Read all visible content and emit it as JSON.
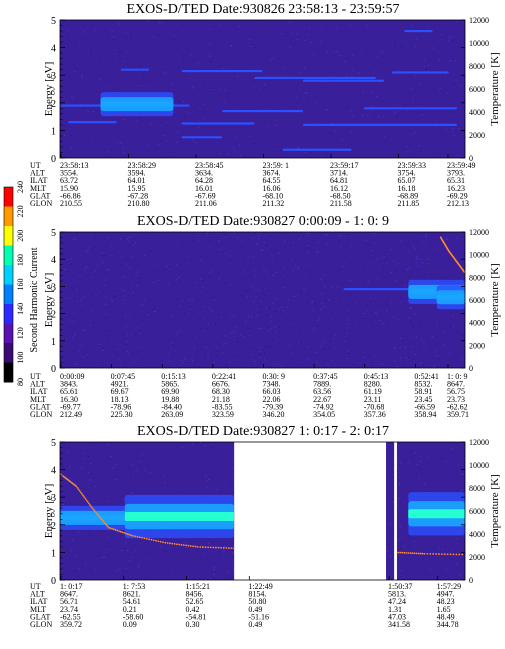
{
  "colors": {
    "background": "#3a1f9b",
    "band_weak": "#2a50ff",
    "band_mid": "#1aa6ff",
    "band_strong": "#25ffd2",
    "trace": "#ff8a2a"
  },
  "colorbar": {
    "label": "Second Harmonic Current",
    "ticks": [
      "80",
      "100",
      "120",
      "140",
      "160",
      "180",
      "200",
      "220",
      "240"
    ],
    "colors": [
      "#000000",
      "#3b0a73",
      "#5a13b0",
      "#2b2bff",
      "#0080ff",
      "#00d0ff",
      "#00ffb0",
      "#ffff00",
      "#ff9900",
      "#ff0000"
    ]
  },
  "chart_data": [
    {
      "type": "heatmap",
      "title": "EXOS-D/TED   Date:930826  23:58:13 - 23:59:57",
      "ylabel": "Energy [eV]",
      "y2label": "Temperature [K]",
      "ylim": [
        0,
        5
      ],
      "y2lim": [
        0,
        12000
      ],
      "yticks": [
        "0",
        "1",
        "2",
        "3",
        "4",
        "5"
      ],
      "y2ticks": [
        "0",
        "2000",
        "4000",
        "6000",
        "8000",
        "10000",
        "12000"
      ],
      "ephemeris": {
        "labels": [
          "UT",
          "ALT",
          "ILAT",
          "MLT",
          "GLAT",
          "GLON"
        ],
        "columns": [
          [
            "23:58:13",
            "3554.",
            "63.72",
            "15.90",
            "-66.86",
            "210.55"
          ],
          [
            "23:58:29",
            "3594.",
            "64.01",
            "15.95",
            "-67.28",
            "210.80"
          ],
          [
            "23:58:45",
            "3634.",
            "64.28",
            "16.01",
            "-67.69",
            "211.06"
          ],
          [
            "23:59: 1",
            "3674.",
            "64.55",
            "16.06",
            "-68.10",
            "211.32"
          ],
          [
            "23:59:17",
            "3714.",
            "64.81",
            "16.12",
            "-68.50",
            "211.58"
          ],
          [
            "23:59:33",
            "3754.",
            "65.07",
            "16.18",
            "-68.89",
            "211.85"
          ],
          [
            "23:59:49",
            "3793.",
            "65.31",
            "16.23",
            "-69.29",
            "212.13"
          ]
        ]
      },
      "x_coverage": [
        [
          0,
          1
        ]
      ],
      "features": [
        {
          "t": [
            0.15,
            0.22
          ],
          "e": 3.2,
          "level": 1
        },
        {
          "t": [
            0.3,
            0.5
          ],
          "e": 3.15,
          "level": 1
        },
        {
          "t": [
            0.48,
            0.78
          ],
          "e": 2.9,
          "level": 1
        },
        {
          "t": [
            0.6,
            0.8
          ],
          "e": 2.8,
          "level": 1
        },
        {
          "t": [
            0.82,
            0.96
          ],
          "e": 3.1,
          "level": 1
        },
        {
          "t": [
            0.0,
            0.32
          ],
          "e": 1.9,
          "level": 1
        },
        {
          "t": [
            0.1,
            0.28
          ],
          "e": 1.95,
          "level": 2
        },
        {
          "t": [
            0.4,
            0.6
          ],
          "e": 1.7,
          "level": 1
        },
        {
          "t": [
            0.75,
            0.98
          ],
          "e": 1.8,
          "level": 1
        },
        {
          "t": [
            0.02,
            0.14
          ],
          "e": 1.3,
          "level": 1
        },
        {
          "t": [
            0.3,
            0.48
          ],
          "e": 1.25,
          "level": 1
        },
        {
          "t": [
            0.6,
            0.98
          ],
          "e": 1.2,
          "level": 1
        },
        {
          "t": [
            0.3,
            0.4
          ],
          "e": 0.75,
          "level": 1
        },
        {
          "t": [
            0.55,
            0.72
          ],
          "e": 0.3,
          "level": 1
        },
        {
          "t": [
            0.85,
            0.92
          ],
          "e": 4.6,
          "level": 1
        }
      ]
    },
    {
      "type": "heatmap",
      "title": "EXOS-D/TED   Date:930827  0:00:09 - 1: 0: 9",
      "ylabel": "Energy [eV]",
      "y2label": "Temperature [K]",
      "ylim": [
        0,
        5
      ],
      "y2lim": [
        0,
        12000
      ],
      "yticks": [
        "0",
        "1",
        "2",
        "3",
        "4",
        "5"
      ],
      "y2ticks": [
        "0",
        "2000",
        "4000",
        "6000",
        "8000",
        "10000",
        "12000"
      ],
      "ephemeris": {
        "labels": [
          "UT",
          "ALT",
          "ILAT",
          "MLT",
          "GLAT",
          "GLON"
        ],
        "columns": [
          [
            "0:00:09",
            "3843.",
            "65.61",
            "16.30",
            "-69.77",
            "212.49"
          ],
          [
            "0:07:45",
            "4921.",
            "69.67",
            "18.13",
            "-78.96",
            "225.30"
          ],
          [
            "0:15:13",
            "5865.",
            "69.90",
            "19.88",
            "-84.40",
            "263.09"
          ],
          [
            "0:22:41",
            "6676.",
            "68.30",
            "21.18",
            "-83.55",
            "323.59"
          ],
          [
            "0:30: 9",
            "7348.",
            "66.03",
            "22.06",
            "-79.39",
            "346.20"
          ],
          [
            "0:37:45",
            "7889.",
            "63.56",
            "22.67",
            "-74.92",
            "354.05"
          ],
          [
            "0:45:13",
            "8280.",
            "61.19",
            "23.11",
            "-70.68",
            "357.36"
          ],
          [
            "0:52:41",
            "8532.",
            "58.91",
            "23.45",
            "-66.59",
            "358.94"
          ],
          [
            "1: 0: 9",
            "8647.",
            "56.75",
            "23.73",
            "-62.62",
            "359.71"
          ]
        ]
      },
      "x_coverage": [
        [
          0,
          1
        ]
      ],
      "features": [
        {
          "t": [
            0.7,
            0.96
          ],
          "e": 2.9,
          "level": 1
        },
        {
          "t": [
            0.86,
            1.0
          ],
          "e": 2.8,
          "level": 2
        },
        {
          "t": [
            0.93,
            1.0
          ],
          "e": 2.6,
          "level": 2
        }
      ],
      "trace": [
        [
          0.94,
          4.8
        ],
        [
          0.96,
          4.3
        ],
        [
          0.98,
          3.9
        ],
        [
          1.0,
          3.5
        ]
      ]
    },
    {
      "type": "heatmap",
      "title": "EXOS-D/TED   Date:930827  1: 0:17 - 2: 0:17",
      "ylabel": "Energy [eV]",
      "y2label": "Temperature [K]",
      "ylim": [
        0,
        5
      ],
      "y2lim": [
        0,
        12000
      ],
      "yticks": [
        "0",
        "1",
        "2",
        "3",
        "4",
        "5"
      ],
      "y2ticks": [
        "0",
        "2000",
        "4000",
        "6000",
        "8000",
        "10000",
        "12000"
      ],
      "ephemeris": {
        "labels": [
          "UT",
          "ALT",
          "ILAT",
          "MLT",
          "GLAT",
          "GLON"
        ],
        "columns": [
          [
            "1: 0:17",
            "8647.",
            "56.71",
            "23.74",
            "-62.55",
            "359.72"
          ],
          [
            "1: 7:53",
            "8621.",
            "54.61",
            "0.21",
            "-58.60",
            "0.09"
          ],
          [
            "1:15:21",
            "8456.",
            "52.65",
            "0.42",
            "-54.81",
            "0.30"
          ],
          [
            "1:22:49",
            "8154.",
            "50.80",
            "0.49",
            "-51.16",
            "0.49"
          ],
          [
            "1:50:37",
            "5813.",
            "47.24",
            "1.31",
            "47.03",
            "341.58"
          ],
          [
            "1:57:29",
            "4947.",
            "48.23",
            "1.65",
            "48.49",
            "344.78"
          ]
        ]
      },
      "x_coverage": [
        [
          0,
          0.43
        ],
        [
          0.805,
          0.825
        ],
        [
          0.832,
          1.0
        ]
      ],
      "features": [
        {
          "t": [
            0.0,
            0.43
          ],
          "e": 2.25,
          "level": 2
        },
        {
          "t": [
            0.16,
            0.43
          ],
          "e": 2.3,
          "level": 3
        },
        {
          "t": [
            0.86,
            1.0
          ],
          "e": 2.4,
          "level": 3
        }
      ],
      "trace": [
        [
          0.0,
          3.85
        ],
        [
          0.04,
          3.4
        ],
        [
          0.08,
          2.6
        ],
        [
          0.12,
          1.9
        ],
        [
          0.18,
          1.6
        ],
        [
          0.26,
          1.35
        ],
        [
          0.34,
          1.2
        ],
        [
          0.43,
          1.15
        ],
        [
          0.83,
          1.0
        ],
        [
          0.9,
          0.95
        ],
        [
          1.0,
          0.92
        ]
      ]
    }
  ]
}
